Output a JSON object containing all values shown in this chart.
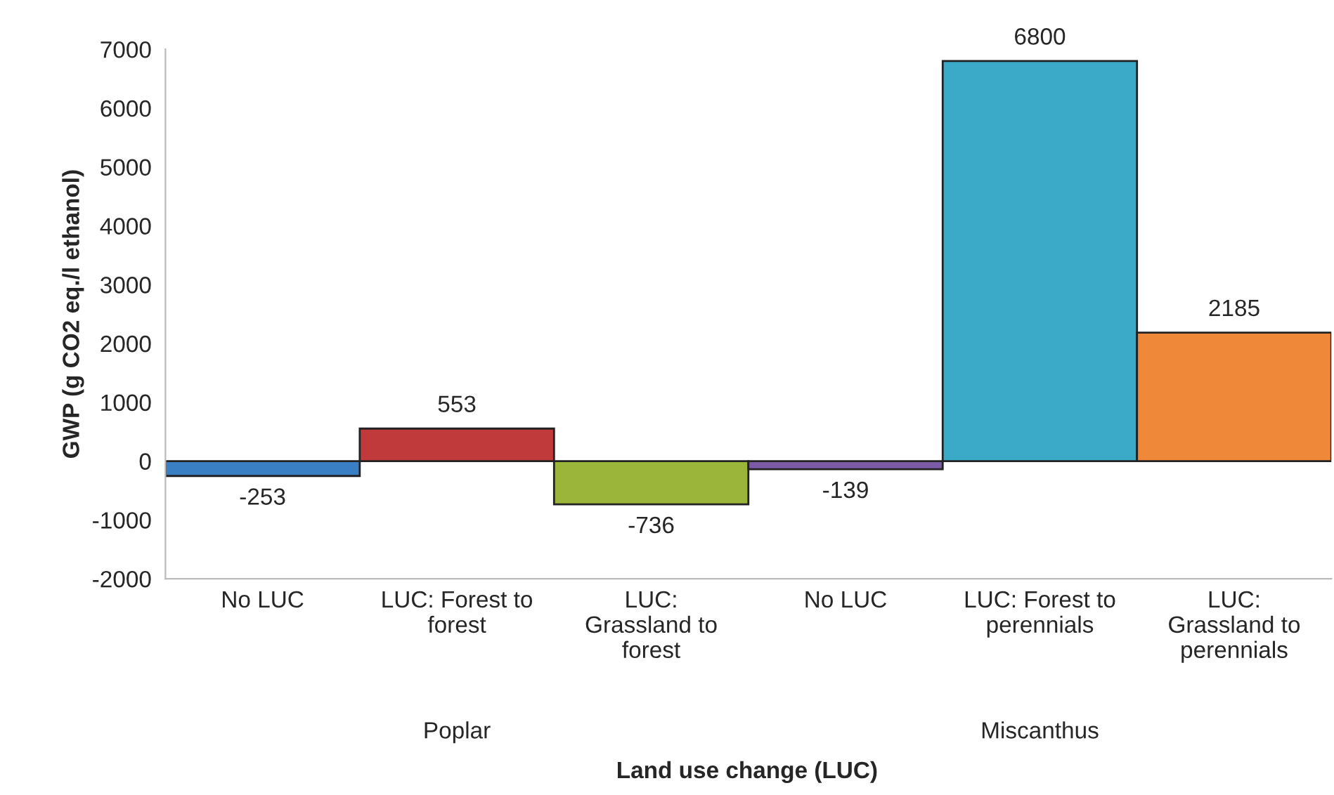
{
  "chart_data": {
    "type": "bar",
    "xlabel": "Land use change (LUC)",
    "ylabel": "GWP (g CO2 eq./l ethanol)",
    "categories": [
      "No LUC",
      "LUC: Forest to\nforest",
      "LUC:\nGrassland to\nforest",
      "No LUC",
      "LUC: Forest to\nperennials",
      "LUC:\nGrassland to\nperennials"
    ],
    "values": [
      -253,
      553,
      -736,
      -139,
      6800,
      2185
    ],
    "colors": [
      "#3a7fc4",
      "#c0393b",
      "#9ab53a",
      "#7b5aa6",
      "#3aaac8",
      "#f0883a"
    ],
    "ylim": [
      -2000,
      7000
    ],
    "yticks": [
      -2000,
      -1000,
      0,
      1000,
      2000,
      3000,
      4000,
      5000,
      6000,
      7000
    ],
    "data_labels": true,
    "grid": false,
    "annotations": [
      "Poplar",
      "Miscanthus"
    ]
  }
}
